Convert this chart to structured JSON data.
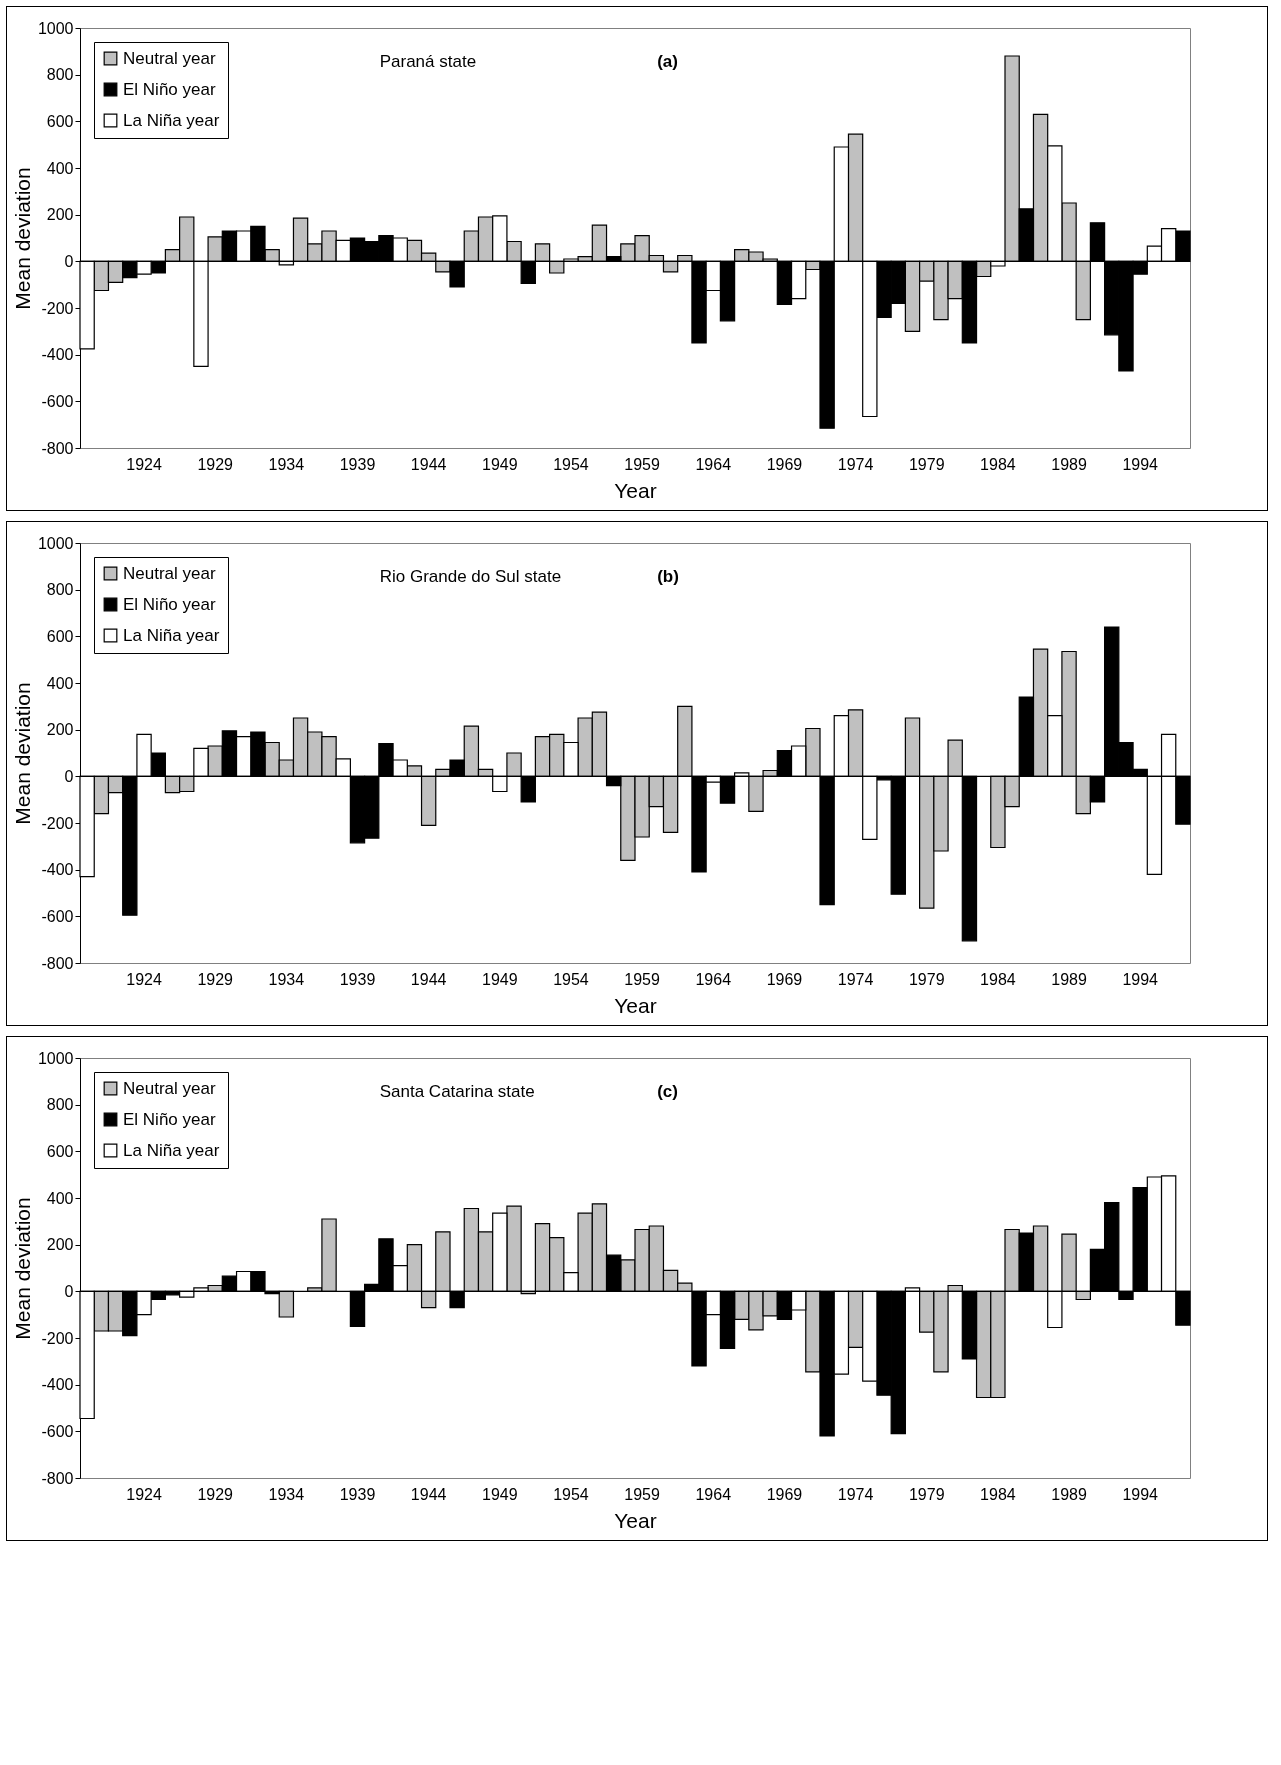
{
  "chart_data": [
    {
      "type": "bar",
      "title": "Paraná state",
      "annotations": [
        "(a)"
      ],
      "xlabel": "Year",
      "ylabel": "Mean deviation",
      "legend": "top left",
      "ylim": [
        -800,
        1000
      ],
      "yticks": [
        -800,
        -600,
        -400,
        -200,
        0,
        200,
        400,
        600,
        800,
        1000
      ],
      "categories": [
        null,
        null,
        null,
        null,
        "1924",
        null,
        null,
        null,
        null,
        "1929",
        null,
        null,
        null,
        null,
        "1934",
        null,
        null,
        null,
        null,
        "1939",
        null,
        null,
        null,
        null,
        "1944",
        null,
        null,
        null,
        null,
        "1949",
        null,
        null,
        null,
        null,
        "1954",
        null,
        null,
        null,
        null,
        "1959",
        null,
        null,
        null,
        null,
        "1964",
        null,
        null,
        null,
        null,
        "1969",
        null,
        null,
        null,
        null,
        "1974",
        null,
        null,
        null,
        null,
        "1979",
        null,
        null,
        null,
        null,
        "1984",
        null,
        null,
        null,
        null,
        "1989",
        null,
        null,
        null,
        null,
        "1994",
        null,
        null,
        null
      ],
      "series": [
        {
          "name": "Neutral year",
          "color": "#c0c0c0",
          "values": [
            null,
            -125,
            -90,
            null,
            null,
            null,
            50,
            190,
            null,
            105,
            null,
            null,
            null,
            50,
            null,
            185,
            75,
            130,
            null,
            null,
            null,
            null,
            null,
            90,
            35,
            -45,
            null,
            130,
            190,
            null,
            85,
            null,
            75,
            -50,
            null,
            20,
            155,
            null,
            75,
            110,
            25,
            -45,
            25,
            null,
            null,
            null,
            50,
            40,
            10,
            null,
            null,
            -35,
            null,
            null,
            545,
            null,
            null,
            null,
            -300,
            -85,
            -250,
            -160,
            null,
            -65,
            null,
            880,
            null,
            630,
            null,
            250,
            -250,
            null,
            null,
            null,
            null,
            null,
            null,
            null
          ]
        },
        {
          "name": "El Niño year",
          "color": "#000000",
          "values": [
            null,
            null,
            null,
            -70,
            null,
            -50,
            null,
            null,
            null,
            null,
            130,
            null,
            150,
            null,
            null,
            null,
            null,
            null,
            null,
            100,
            85,
            110,
            null,
            null,
            null,
            null,
            -110,
            null,
            null,
            null,
            null,
            -95,
            null,
            null,
            null,
            null,
            null,
            20,
            null,
            null,
            null,
            null,
            null,
            -350,
            null,
            -255,
            null,
            null,
            null,
            -185,
            null,
            null,
            -715,
            null,
            null,
            null,
            -240,
            -180,
            null,
            null,
            null,
            null,
            -350,
            null,
            null,
            null,
            225,
            null,
            null,
            null,
            null,
            165,
            -315,
            -470,
            -55,
            null,
            null,
            130
          ]
        },
        {
          "name": "La Niña year",
          "color": "#ffffff",
          "values": [
            -375,
            null,
            null,
            null,
            -55,
            null,
            null,
            null,
            -450,
            null,
            null,
            130,
            null,
            null,
            -15,
            null,
            null,
            null,
            90,
            null,
            null,
            null,
            100,
            null,
            null,
            null,
            null,
            null,
            null,
            195,
            null,
            null,
            null,
            null,
            10,
            null,
            null,
            null,
            null,
            null,
            null,
            null,
            null,
            null,
            -125,
            null,
            null,
            null,
            null,
            null,
            -160,
            null,
            null,
            490,
            null,
            -665,
            null,
            null,
            null,
            null,
            null,
            null,
            null,
            null,
            -20,
            null,
            null,
            null,
            495,
            null,
            null,
            null,
            null,
            null,
            null,
            65,
            140,
            null
          ]
        }
      ]
    },
    {
      "type": "bar",
      "title": "Rio Grande do Sul state",
      "annotations": [
        "(b)"
      ],
      "xlabel": "Year",
      "ylabel": "Mean deviation",
      "legend": "top left",
      "ylim": [
        -800,
        1000
      ],
      "yticks": [
        -800,
        -600,
        -400,
        -200,
        0,
        200,
        400,
        600,
        800,
        1000
      ],
      "categories": [
        null,
        null,
        null,
        null,
        "1924",
        null,
        null,
        null,
        null,
        "1929",
        null,
        null,
        null,
        null,
        "1934",
        null,
        null,
        null,
        null,
        "1939",
        null,
        null,
        null,
        null,
        "1944",
        null,
        null,
        null,
        null,
        "1949",
        null,
        null,
        null,
        null,
        "1954",
        null,
        null,
        null,
        null,
        "1959",
        null,
        null,
        null,
        null,
        "1964",
        null,
        null,
        null,
        null,
        "1969",
        null,
        null,
        null,
        null,
        "1974",
        null,
        null,
        null,
        null,
        "1979",
        null,
        null,
        null,
        null,
        "1984",
        null,
        null,
        null,
        null,
        "1989",
        null,
        null,
        null,
        null,
        "1994",
        null,
        null,
        null
      ],
      "series": [
        {
          "name": "Neutral year",
          "color": "#c0c0c0",
          "values": [
            null,
            -160,
            -70,
            null,
            null,
            null,
            -70,
            -65,
            null,
            130,
            null,
            null,
            null,
            145,
            70,
            250,
            190,
            170,
            null,
            null,
            null,
            null,
            null,
            45,
            -210,
            30,
            null,
            215,
            30,
            null,
            100,
            null,
            170,
            180,
            null,
            250,
            275,
            null,
            -360,
            -260,
            -130,
            -240,
            300,
            null,
            null,
            null,
            null,
            -150,
            25,
            null,
            null,
            205,
            null,
            null,
            285,
            null,
            null,
            null,
            250,
            -565,
            -320,
            155,
            null,
            null,
            -305,
            -130,
            null,
            545,
            null,
            535,
            -160,
            null,
            null,
            null,
            null,
            null,
            null,
            null
          ]
        },
        {
          "name": "El Niño year",
          "color": "#000000",
          "values": [
            null,
            null,
            null,
            -595,
            null,
            100,
            null,
            null,
            null,
            null,
            195,
            null,
            190,
            null,
            null,
            null,
            null,
            null,
            null,
            -285,
            -265,
            140,
            null,
            null,
            null,
            null,
            70,
            null,
            null,
            null,
            null,
            -110,
            null,
            null,
            null,
            null,
            null,
            -40,
            null,
            null,
            null,
            null,
            null,
            -410,
            null,
            -115,
            null,
            null,
            null,
            110,
            null,
            null,
            -550,
            null,
            null,
            null,
            -15,
            -505,
            null,
            null,
            null,
            null,
            -705,
            null,
            null,
            null,
            340,
            null,
            null,
            null,
            null,
            -110,
            640,
            145,
            30,
            null,
            null,
            -205
          ]
        },
        {
          "name": "La Niña year",
          "color": "#ffffff",
          "values": [
            -430,
            null,
            null,
            null,
            180,
            null,
            null,
            null,
            120,
            null,
            null,
            170,
            null,
            null,
            null,
            null,
            null,
            null,
            75,
            null,
            null,
            null,
            70,
            null,
            null,
            null,
            null,
            null,
            null,
            -65,
            null,
            null,
            null,
            null,
            145,
            null,
            null,
            null,
            null,
            null,
            null,
            null,
            null,
            null,
            -25,
            null,
            15,
            null,
            null,
            null,
            130,
            null,
            null,
            260,
            null,
            -270,
            null,
            null,
            null,
            null,
            null,
            null,
            null,
            null,
            null,
            null,
            null,
            null,
            260,
            null,
            null,
            null,
            null,
            null,
            null,
            -420,
            180,
            null
          ]
        }
      ]
    },
    {
      "type": "bar",
      "title": "Santa Catarina state",
      "annotations": [
        "(c)"
      ],
      "xlabel": "Year",
      "ylabel": "Mean deviation",
      "legend": "top left",
      "ylim": [
        -800,
        1000
      ],
      "yticks": [
        -800,
        -600,
        -400,
        -200,
        0,
        200,
        400,
        600,
        800,
        1000
      ],
      "categories": [
        null,
        null,
        null,
        null,
        "1924",
        null,
        null,
        null,
        null,
        "1929",
        null,
        null,
        null,
        null,
        "1934",
        null,
        null,
        null,
        null,
        "1939",
        null,
        null,
        null,
        null,
        "1944",
        null,
        null,
        null,
        null,
        "1949",
        null,
        null,
        null,
        null,
        "1954",
        null,
        null,
        null,
        null,
        "1959",
        null,
        null,
        null,
        null,
        "1964",
        null,
        null,
        null,
        null,
        "1969",
        null,
        null,
        null,
        null,
        "1974",
        null,
        null,
        null,
        null,
        "1979",
        null,
        null,
        null,
        null,
        "1984",
        null,
        null,
        null,
        null,
        "1989",
        null,
        null,
        null,
        null,
        "1994",
        null,
        null,
        null
      ],
      "series": [
        {
          "name": "Neutral year",
          "color": "#c0c0c0",
          "values": [
            null,
            -170,
            -170,
            null,
            null,
            null,
            null,
            null,
            null,
            25,
            null,
            null,
            null,
            null,
            -110,
            null,
            15,
            310,
            null,
            null,
            null,
            null,
            null,
            200,
            -70,
            255,
            null,
            355,
            255,
            null,
            365,
            -10,
            290,
            230,
            null,
            335,
            375,
            null,
            135,
            265,
            280,
            90,
            35,
            null,
            null,
            null,
            -120,
            -165,
            -105,
            null,
            null,
            -345,
            null,
            null,
            -240,
            null,
            null,
            null,
            null,
            -175,
            -345,
            25,
            null,
            -455,
            -455,
            265,
            null,
            280,
            null,
            245,
            -35,
            null,
            null,
            null,
            null,
            null,
            null,
            null
          ]
        },
        {
          "name": "El Niño year",
          "color": "#000000",
          "values": [
            null,
            null,
            null,
            -190,
            null,
            -35,
            -15,
            null,
            null,
            null,
            65,
            null,
            85,
            -10,
            null,
            null,
            null,
            null,
            null,
            -150,
            30,
            225,
            null,
            null,
            null,
            null,
            -70,
            null,
            null,
            null,
            null,
            null,
            null,
            null,
            null,
            null,
            null,
            155,
            null,
            null,
            null,
            null,
            null,
            -320,
            null,
            -245,
            null,
            null,
            null,
            -120,
            null,
            null,
            -620,
            null,
            null,
            null,
            -445,
            -610,
            null,
            null,
            null,
            null,
            -290,
            null,
            null,
            null,
            250,
            null,
            null,
            null,
            null,
            180,
            380,
            -35,
            445,
            null,
            null,
            -145
          ]
        },
        {
          "name": "La Niña year",
          "color": "#ffffff",
          "values": [
            -545,
            null,
            null,
            null,
            -100,
            null,
            null,
            -25,
            15,
            null,
            null,
            85,
            null,
            null,
            null,
            null,
            null,
            null,
            null,
            null,
            null,
            null,
            110,
            null,
            null,
            null,
            null,
            null,
            null,
            335,
            null,
            null,
            null,
            null,
            80,
            null,
            null,
            null,
            null,
            null,
            null,
            null,
            null,
            null,
            -100,
            null,
            null,
            null,
            null,
            null,
            -80,
            null,
            null,
            -355,
            null,
            -385,
            null,
            null,
            15,
            null,
            null,
            null,
            null,
            null,
            null,
            null,
            null,
            null,
            -155,
            null,
            null,
            null,
            null,
            null,
            null,
            490,
            495,
            null
          ]
        }
      ]
    }
  ]
}
